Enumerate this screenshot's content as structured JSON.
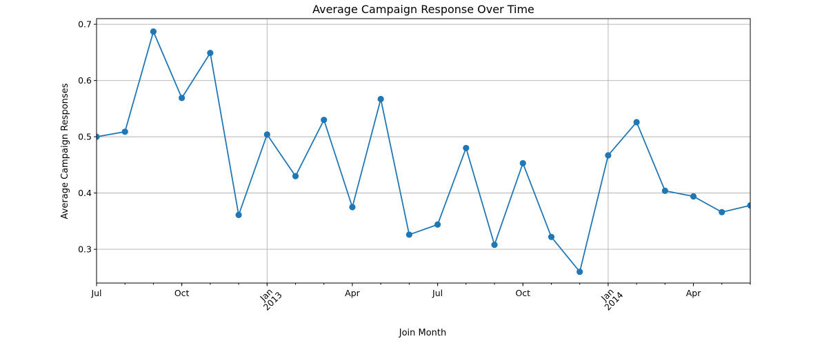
{
  "chart_data": {
    "type": "line",
    "title": "Average Campaign Response Over Time",
    "xlabel": "Join Month",
    "ylabel": "Average Campaign Responses",
    "x": [
      "2012-07",
      "2012-08",
      "2012-09",
      "2012-10",
      "2012-11",
      "2012-12",
      "2013-01",
      "2013-02",
      "2013-03",
      "2013-04",
      "2013-05",
      "2013-06",
      "2013-07",
      "2013-08",
      "2013-09",
      "2013-10",
      "2013-11",
      "2013-12",
      "2014-01",
      "2014-02",
      "2014-03",
      "2014-04",
      "2014-05",
      "2014-06"
    ],
    "series": [
      {
        "values": [
          0.5,
          0.509,
          0.687,
          0.569,
          0.649,
          0.361,
          0.504,
          0.43,
          0.53,
          0.375,
          0.567,
          0.326,
          0.344,
          0.48,
          0.308,
          0.453,
          0.322,
          0.26,
          0.467,
          0.526,
          0.404,
          0.394,
          0.366,
          0.378
        ],
        "color": "#1f77b4",
        "marker": "circle"
      }
    ],
    "ylim": [
      0.24,
      0.71
    ],
    "xlim": [
      "2012-07",
      "2014-06"
    ],
    "yticks": [
      "0.3",
      "0.4",
      "0.5",
      "0.6",
      "0.7"
    ],
    "xticks": [
      {
        "x": "2012-07",
        "label": "Jul"
      },
      {
        "x": "2012-10",
        "label": "Oct"
      },
      {
        "x": "2013-01",
        "label": "Jan",
        "sublabel": "2013"
      },
      {
        "x": "2013-04",
        "label": "Apr"
      },
      {
        "x": "2013-07",
        "label": "Jul"
      },
      {
        "x": "2013-10",
        "label": "Oct"
      },
      {
        "x": "2014-01",
        "label": "Jan",
        "sublabel": "2014"
      },
      {
        "x": "2014-04",
        "label": "Apr"
      }
    ],
    "grid": true,
    "legend": false
  }
}
